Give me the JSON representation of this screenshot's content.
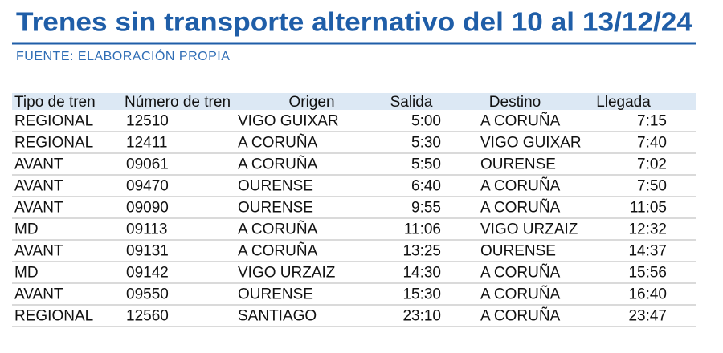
{
  "header": {
    "title": "Trenes sin transporte alternativo del 10 al 13/12/24",
    "source": "FUENTE: ELABORACIÓN PROPIA"
  },
  "table": {
    "columns": [
      "Tipo de tren",
      "Número de tren",
      "Origen",
      "Salida",
      "Destino",
      "Llegada"
    ],
    "rows": [
      [
        "REGIONAL",
        "12510",
        "VIGO GUIXAR",
        "5:00",
        "A CORUÑA",
        "7:15"
      ],
      [
        "REGIONAL",
        "12411",
        "A CORUÑA",
        "5:30",
        "VIGO GUIXAR",
        "7:40"
      ],
      [
        "AVANT",
        "09061",
        "A CORUÑA",
        "5:50",
        "OURENSE",
        "7:02"
      ],
      [
        "AVANT",
        "09470",
        "OURENSE",
        "6:40",
        "A CORUÑA",
        "7:50"
      ],
      [
        "AVANT",
        "09090",
        "OURENSE",
        "9:55",
        "A CORUÑA",
        "11:05"
      ],
      [
        "MD",
        "09113",
        "A CORUÑA",
        "11:06",
        "VIGO URZAIZ",
        "12:32"
      ],
      [
        "AVANT",
        "09131",
        "A CORUÑA",
        "13:25",
        "OURENSE",
        "14:37"
      ],
      [
        "MD",
        "09142",
        "VIGO URZAIZ",
        "14:30",
        "A CORUÑA",
        "15:56"
      ],
      [
        "AVANT",
        "09550",
        "OURENSE",
        "15:30",
        "A CORUÑA",
        "16:40"
      ],
      [
        "REGIONAL",
        "12560",
        "SANTIAGO",
        "23:10",
        "A CORUÑA",
        "23:47"
      ]
    ]
  }
}
